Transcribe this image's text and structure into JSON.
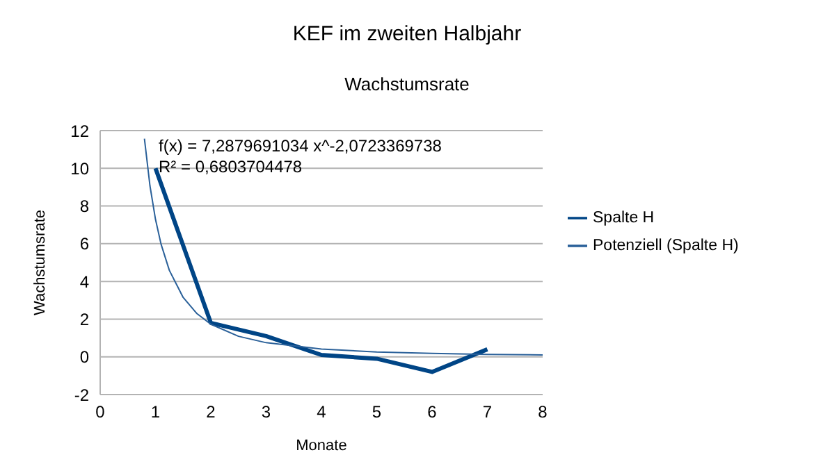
{
  "chart_data": {
    "type": "line",
    "title": "KEF im zweiten Halbjahr",
    "subtitle": "Wachstumsrate",
    "xlabel": "Monate",
    "ylabel": "Wachstumsrate",
    "annotations": [
      "f(x) = 7,2879691034 x^-2,0723369738",
      "R² = 0,6803704478"
    ],
    "x": [
      1,
      2,
      3,
      4,
      5,
      6,
      7
    ],
    "series": [
      {
        "name": "Spalte H",
        "color": "#004586",
        "values": [
          10,
          1.8,
          1.1,
          0.1,
          -0.1,
          -0.8,
          0.4
        ]
      },
      {
        "name": "Potenziell (Spalte H)",
        "color": "#2a6099",
        "x": [
          0.8,
          0.9,
          1,
          1.1,
          1.25,
          1.5,
          1.75,
          2,
          2.5,
          3,
          4,
          5,
          6,
          7,
          8
        ],
        "values": [
          11.57,
          9.07,
          7.29,
          5.98,
          4.59,
          3.15,
          2.29,
          1.73,
          1.09,
          0.75,
          0.41,
          0.26,
          0.18,
          0.13,
          0.1
        ]
      }
    ],
    "xlim": [
      0,
      8
    ],
    "xticks": [
      0,
      1,
      2,
      3,
      4,
      5,
      6,
      7,
      8
    ],
    "ylim": [
      -2,
      12
    ],
    "yticks": [
      -2,
      0,
      2,
      4,
      6,
      8,
      10,
      12
    ],
    "grid": "y",
    "legend": "right",
    "marker": "none",
    "line_style": "solid"
  }
}
